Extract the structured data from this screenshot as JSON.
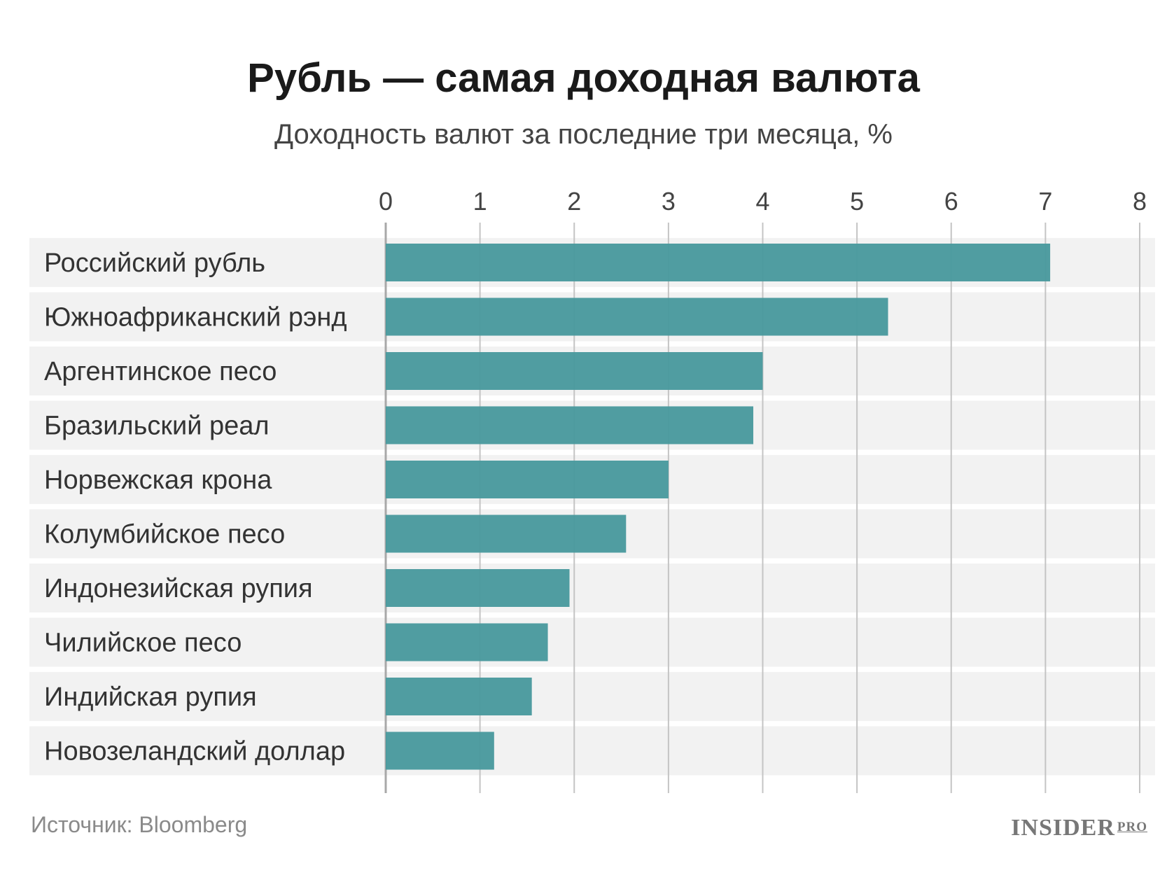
{
  "chart_data": {
    "type": "bar",
    "orientation": "horizontal",
    "title": "Рубль — самая доходная валюта",
    "subtitle": "Доходность валют за последние три месяца, %",
    "categories": [
      "Российский рубль",
      "Южноафриканский рэнд",
      "Аргентинское песо",
      "Бразильский реал",
      "Норвежская крона",
      "Колумбийское песо",
      "Индонезийская рупия",
      "Чилийское песо",
      "Индийская рупия",
      "Новозеландский доллар"
    ],
    "values": [
      7.05,
      5.33,
      4.0,
      3.9,
      3.0,
      2.55,
      1.95,
      1.72,
      1.55,
      1.15
    ],
    "xlim": [
      0,
      8
    ],
    "xticks": [
      "0",
      "1",
      "2",
      "3",
      "4",
      "5",
      "6",
      "7",
      "8"
    ],
    "grid": true,
    "bar_color": "#4a9a9e",
    "row_background": "#f2f2f2"
  },
  "footer": {
    "source": "Источник: Bloomberg",
    "brand": "INSIDER",
    "brand_suffix": "PRO"
  }
}
